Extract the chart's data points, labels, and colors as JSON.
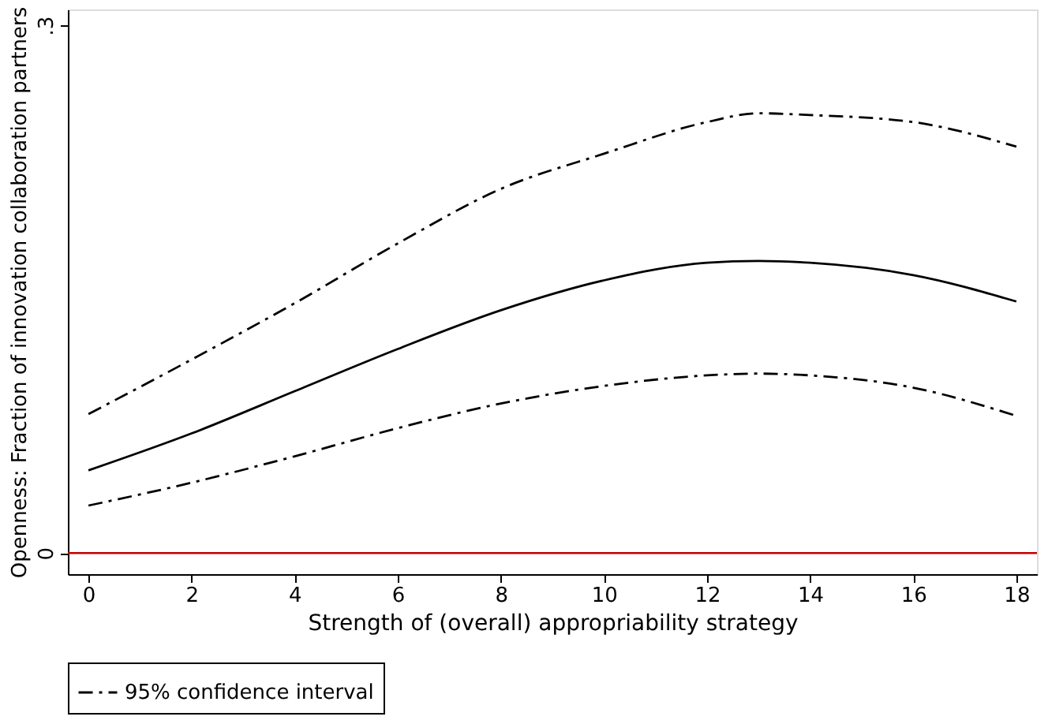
{
  "chart_data": {
    "type": "line",
    "xlabel": "Strength of (overall) appropriability strategy",
    "ylabel": "Openness: Fraction of innovation collaboration partners",
    "x": [
      0,
      2,
      4,
      6,
      8,
      10,
      12,
      13,
      14,
      16,
      18
    ],
    "series": [
      {
        "color": "#000000",
        "line_style": "solid",
        "values": [
          0.047,
          0.068,
          0.092,
          0.116,
          0.138,
          0.155,
          0.165,
          0.166,
          0.165,
          0.158,
          0.143
        ]
      },
      {
        "name": "95% confidence interval",
        "color": "#000000",
        "line_style": "dashed",
        "values": [
          0.079,
          0.11,
          0.142,
          0.176,
          0.207,
          0.227,
          0.245,
          0.25,
          0.249,
          0.245,
          0.231
        ]
      },
      {
        "color": "#000000",
        "line_style": "dashed",
        "values": [
          0.027,
          0.04,
          0.055,
          0.071,
          0.085,
          0.095,
          0.101,
          0.102,
          0.101,
          0.094,
          0.078
        ]
      }
    ],
    "xlim": [
      -0.4,
      18.4
    ],
    "xticks": [
      0,
      2,
      4,
      6,
      8,
      10,
      12,
      14,
      16,
      18
    ],
    "ylim": [
      -0.012,
      0.309
    ],
    "yticks": [
      0,
      {
        "value": 0.3,
        "label": ".3"
      }
    ],
    "ref_lines": [
      {
        "axis": "y",
        "value": 0,
        "color": "#c00000"
      }
    ],
    "grid": false,
    "legend": "bottom"
  }
}
